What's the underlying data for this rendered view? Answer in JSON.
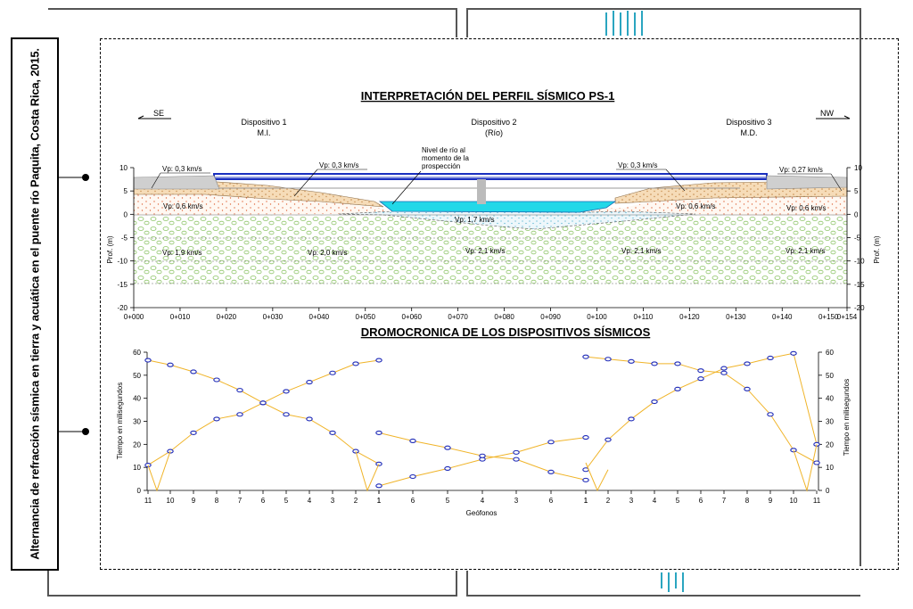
{
  "side_title": "Alternancia de refracción sísmica en tierra y acuática en el puente río Paquita, Costa Rica, 2015.",
  "profile": {
    "title": "INTERPRETACIÓN DEL PERFIL SÍSMICO PS-1",
    "dir_left": "SE",
    "dir_right": "NW",
    "devices": [
      {
        "name": "Dispositivo 1",
        "sub": "M.I."
      },
      {
        "name": "Dispositivo 2",
        "sub": "(Río)"
      },
      {
        "name": "Dispositivo 3",
        "sub": "M.D."
      }
    ],
    "river_note": [
      "Nivel de río al",
      "momento de la",
      "prospección"
    ],
    "ylabel_left": "Prof. (m)",
    "ylabel_right": "Prof. (m)",
    "y_ticks": [
      "10",
      "5",
      "0",
      "-5",
      "-10",
      "-15",
      "-20"
    ],
    "x_ticks": [
      "0+000",
      "0+010",
      "0+020",
      "0+030",
      "0+040",
      "0+050",
      "0+060",
      "0+070",
      "0+080",
      "0+090",
      "0+100",
      "0+110",
      "0+120",
      "0+130",
      "0+140",
      "0+150",
      "0+154"
    ],
    "layer_labels": [
      "Vp: 0,3 km/s",
      "Vp: 0,3 km/s",
      "Vp: 0,3 km/s",
      "Vp: 0,27 km/s",
      "Vp: 0,6 km/s",
      "Vp: 0,6 km/s",
      "Vp: 0,6 km/s",
      "Vp: 1,7 km/s",
      "Vp: 1,9 km/s",
      "Vp: 2,0 km/s",
      "Vp: 2,1 km/s",
      "Vp: 2,1 km/s",
      "Vp: 2,1 km/s"
    ]
  },
  "chart_data": {
    "type": "scatter",
    "title": "DROMOCRONICA DE LOS DISPOSITIVOS SÍSMICOS",
    "xlabel": "Geófonos",
    "ylabel": "Tiempo en milisegundos",
    "ylim": [
      0,
      60
    ],
    "y_ticks": [
      0,
      10,
      20,
      30,
      40,
      50,
      60
    ],
    "x_tick_labels": [
      "11",
      "10",
      "9",
      "8",
      "7",
      "6",
      "5",
      "4",
      "3",
      "2",
      "1",
      "1",
      "6",
      "5",
      "4",
      "3",
      "6",
      "1",
      "1",
      "2",
      "3",
      "4",
      "5",
      "6",
      "7",
      "8",
      "9",
      "10",
      "11"
    ],
    "grid": false,
    "series": [
      {
        "values": [
          11,
          17,
          25,
          31,
          33,
          38,
          43,
          47,
          51,
          55,
          56.5
        ]
      },
      {
        "values": [
          56.5,
          54.5,
          51.5,
          48,
          43.5,
          38,
          33,
          31,
          25,
          17,
          11.5
        ]
      },
      {
        "values": [
          2,
          6,
          9.5,
          13.5,
          16.5,
          21,
          23
        ]
      },
      {
        "values": [
          25,
          21.5,
          18.5,
          15,
          13.5,
          8,
          4.5
        ]
      },
      {
        "values": [
          9,
          22,
          31,
          38.5,
          44,
          48.5,
          53,
          55,
          57.5,
          59.5,
          20
        ]
      },
      {
        "values": [
          58,
          57,
          56,
          55,
          55,
          52,
          51,
          44,
          33,
          17.5,
          12
        ]
      }
    ]
  }
}
